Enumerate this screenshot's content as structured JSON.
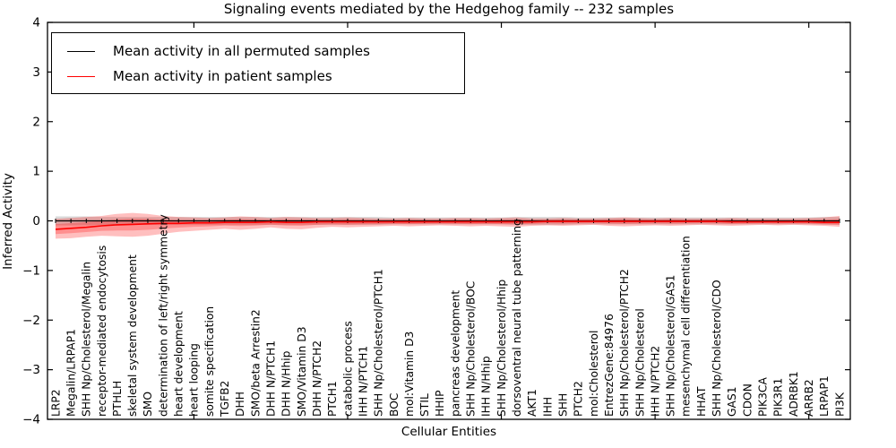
{
  "figure": {
    "title": "Signaling events mediated by the Hedgehog family -- 232 samples",
    "xlabel": "Cellular Entities",
    "ylabel": "Inferred Activity"
  },
  "legend": {
    "entries": [
      {
        "label": "Mean activity in all permuted samples",
        "color": "#000000"
      },
      {
        "label": "Mean activity in patient samples",
        "color": "#ff0000"
      }
    ]
  },
  "colors": {
    "background": "#ffffff",
    "axis": "#000000",
    "permuted_line": "#000000",
    "patient_line": "#ff0000",
    "permuted_band": "rgba(0,0,0,0.15)",
    "patient_band": "rgba(255,0,0,0.25)"
  },
  "chart_data": {
    "type": "line",
    "title": "Signaling events mediated by the Hedgehog family -- 232 samples",
    "xlabel": "Cellular Entities",
    "ylabel": "Inferred Activity",
    "ylim": [
      -4,
      4
    ],
    "yticks": [
      -4,
      -3,
      -2,
      -1,
      0,
      1,
      2,
      3,
      4
    ],
    "x_major_tick_positions": [
      10,
      20,
      30,
      40,
      50
    ],
    "grid": false,
    "legend_position": "upper left",
    "categories": [
      "LRP2",
      "Megalin/LRPAP1",
      "SHH Np/Cholesterol/Megalin",
      "receptor-mediated endocytosis",
      "PTHLH",
      "skeletal system development",
      "SMO",
      "determination of left/right symmetry",
      "heart development",
      "heart looping",
      "somite specification",
      "TGFB2",
      "DHH",
      "SMO/beta Arrestin2",
      "DHH N/PTCH1",
      "DHH N/Hhip",
      "SMO/Vitamin D3",
      "DHH N/PTCH2",
      "PTCH1",
      "catabolic process",
      "IHH N/PTCH1",
      "SHH Np/Cholesterol/PTCH1",
      "BOC",
      "mol:Vitamin D3",
      "STIL",
      "HHIP",
      "pancreas development",
      "SHH Np/Cholesterol/BOC",
      "IHH N/Hhip",
      "SHH Np/Cholesterol/Hhip",
      "dorsoventral neural tube patterning",
      "AKT1",
      "IHH",
      "SHH",
      "PTCH2",
      "mol:Cholesterol",
      "EntrezGene:84976",
      "SHH Np/Cholesterol/PTCH2",
      "SHH Np/Cholesterol",
      "IHH N/PTCH2",
      "SHH Np/Cholesterol/GAS1",
      "mesenchymal cell differentiation",
      "HHAT",
      "SHH Np/Cholesterol/CDO",
      "GAS1",
      "CDON",
      "PIK3CA",
      "PIK3R1",
      "ADRBK1",
      "ARRB2",
      "LRPAP1",
      "PI3K"
    ],
    "series": [
      {
        "name": "Mean activity in all permuted samples",
        "color": "#000000",
        "band_color": "rgba(0,0,0,0.15)",
        "values": [
          0,
          0,
          0,
          0,
          0,
          0,
          0,
          0,
          0,
          0,
          0,
          0,
          0,
          0,
          0,
          0,
          0,
          0,
          0,
          0,
          0,
          0,
          0,
          0,
          0,
          0,
          0,
          0,
          0,
          0,
          0,
          0,
          0,
          0,
          0,
          0,
          0,
          0,
          0,
          0,
          0,
          0,
          0,
          0,
          0,
          0,
          0,
          0,
          0,
          0,
          0,
          0
        ],
        "band_hi": [
          0.09,
          0.09,
          0.09,
          0.08,
          0.08,
          0.08,
          0.08,
          0.08,
          0.08,
          0.08,
          0.08,
          0.08,
          0.08,
          0.08,
          0.08,
          0.08,
          0.08,
          0.08,
          0.08,
          0.08,
          0.08,
          0.08,
          0.07,
          0.07,
          0.07,
          0.07,
          0.07,
          0.07,
          0.07,
          0.07,
          0.08,
          0.08,
          0.08,
          0.08,
          0.07,
          0.07,
          0.07,
          0.07,
          0.07,
          0.07,
          0.07,
          0.07,
          0.07,
          0.07,
          0.07,
          0.07,
          0.07,
          0.07,
          0.07,
          0.07,
          0.08,
          0.08
        ],
        "band_lo": [
          -0.09,
          -0.09,
          -0.09,
          -0.08,
          -0.08,
          -0.08,
          -0.08,
          -0.08,
          -0.08,
          -0.08,
          -0.08,
          -0.08,
          -0.08,
          -0.08,
          -0.08,
          -0.08,
          -0.08,
          -0.08,
          -0.08,
          -0.08,
          -0.08,
          -0.08,
          -0.07,
          -0.07,
          -0.07,
          -0.07,
          -0.07,
          -0.07,
          -0.07,
          -0.07,
          -0.08,
          -0.08,
          -0.08,
          -0.08,
          -0.07,
          -0.07,
          -0.07,
          -0.07,
          -0.07,
          -0.07,
          -0.07,
          -0.07,
          -0.07,
          -0.07,
          -0.07,
          -0.07,
          -0.07,
          -0.07,
          -0.07,
          -0.07,
          -0.08,
          -0.08
        ]
      },
      {
        "name": "Mean activity in patient samples",
        "color": "#ff0000",
        "band_color": "rgba(255,0,0,0.25)",
        "values": [
          -0.17,
          -0.15,
          -0.13,
          -0.1,
          -0.08,
          -0.07,
          -0.06,
          -0.05,
          -0.05,
          -0.04,
          -0.04,
          -0.03,
          -0.03,
          -0.03,
          -0.02,
          -0.03,
          -0.03,
          -0.02,
          -0.02,
          -0.02,
          -0.02,
          -0.02,
          -0.02,
          -0.02,
          -0.02,
          -0.02,
          -0.02,
          -0.02,
          -0.02,
          -0.02,
          -0.02,
          -0.02,
          -0.01,
          -0.01,
          -0.01,
          -0.01,
          -0.01,
          -0.01,
          -0.01,
          -0.01,
          -0.01,
          -0.01,
          -0.01,
          -0.01,
          -0.02,
          -0.02,
          -0.02,
          -0.02,
          -0.02,
          -0.02,
          -0.03,
          -0.03
        ],
        "band_hi": [
          0.04,
          0.06,
          0.08,
          0.1,
          0.14,
          0.16,
          0.14,
          0.1,
          0.08,
          0.07,
          0.06,
          0.07,
          0.09,
          0.08,
          0.06,
          0.08,
          0.07,
          0.06,
          0.06,
          0.07,
          0.06,
          0.05,
          0.05,
          0.06,
          0.05,
          0.05,
          0.06,
          0.06,
          0.05,
          0.06,
          0.07,
          0.05,
          0.05,
          0.06,
          0.05,
          0.05,
          0.06,
          0.07,
          0.06,
          0.05,
          0.06,
          0.05,
          0.05,
          0.05,
          0.06,
          0.05,
          0.05,
          0.05,
          0.05,
          0.06,
          0.07,
          0.1
        ],
        "band_lo": [
          -0.36,
          -0.35,
          -0.32,
          -0.3,
          -0.31,
          -0.32,
          -0.3,
          -0.26,
          -0.22,
          -0.2,
          -0.18,
          -0.16,
          -0.18,
          -0.16,
          -0.13,
          -0.16,
          -0.17,
          -0.14,
          -0.12,
          -0.13,
          -0.12,
          -0.11,
          -0.1,
          -0.11,
          -0.1,
          -0.09,
          -0.1,
          -0.11,
          -0.1,
          -0.11,
          -0.12,
          -0.1,
          -0.09,
          -0.1,
          -0.09,
          -0.08,
          -0.1,
          -0.11,
          -0.1,
          -0.09,
          -0.1,
          -0.09,
          -0.08,
          -0.09,
          -0.1,
          -0.09,
          -0.08,
          -0.09,
          -0.08,
          -0.09,
          -0.1,
          -0.12
        ]
      }
    ]
  }
}
